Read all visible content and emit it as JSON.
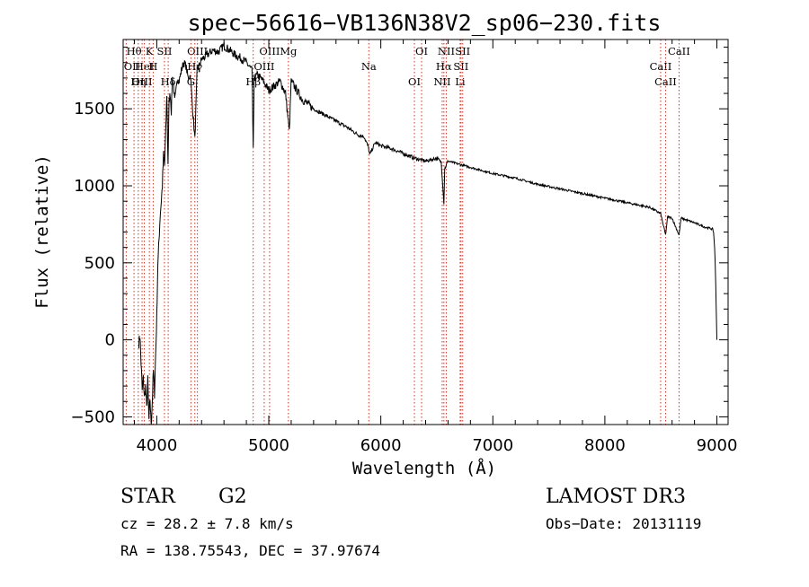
{
  "chart_data": {
    "type": "line",
    "title": "spec−56616−VB136N38V2_sp06−230.fits",
    "xlabel": "Wavelength (Å)",
    "ylabel": "Flux (relative)",
    "xlim": [
      3700,
      9100
    ],
    "ylim": [
      -550,
      1950
    ],
    "xticks": [
      4000,
      5000,
      6000,
      7000,
      8000,
      9000
    ],
    "yticks": [
      -500,
      0,
      500,
      1000,
      1500
    ],
    "xtick_labels": [
      "4000",
      "5000",
      "6000",
      "7000",
      "8000",
      "9000"
    ],
    "ytick_labels": [
      "−500",
      "0",
      "500",
      "1000",
      "1500"
    ],
    "grid": false,
    "series": [
      {
        "name": "flux",
        "x": [
          3840,
          3850,
          3860,
          3870,
          3880,
          3890,
          3900,
          3910,
          3920,
          3930,
          3940,
          3950,
          3960,
          3970,
          3980,
          3990,
          4000,
          4010,
          4020,
          4030,
          4040,
          4050,
          4060,
          4070,
          4080,
          4090,
          4100,
          4110,
          4120,
          4130,
          4140,
          4150,
          4160,
          4170,
          4180,
          4200,
          4220,
          4240,
          4260,
          4280,
          4300,
          4320,
          4340,
          4360,
          4380,
          4400,
          4450,
          4500,
          4550,
          4600,
          4650,
          4700,
          4750,
          4800,
          4850,
          4861,
          4870,
          4900,
          4950,
          5000,
          5050,
          5100,
          5150,
          5170,
          5183,
          5200,
          5250,
          5300,
          5400,
          5500,
          5600,
          5700,
          5800,
          5850,
          5890,
          5900,
          5950,
          6000,
          6100,
          6200,
          6300,
          6400,
          6500,
          6540,
          6563,
          6570,
          6600,
          6700,
          6800,
          6900,
          7000,
          7200,
          7400,
          7600,
          7800,
          8000,
          8200,
          8400,
          8498,
          8510,
          8542,
          8560,
          8600,
          8662,
          8680,
          8800,
          8900,
          8960,
          8970,
          8980,
          8990,
          9000
        ],
        "y": [
          -20,
          30,
          -150,
          -330,
          -250,
          -380,
          -300,
          -450,
          -260,
          -520,
          -380,
          -560,
          -400,
          -200,
          -350,
          -100,
          150,
          500,
          650,
          800,
          900,
          1000,
          1200,
          1130,
          1350,
          1600,
          1150,
          1550,
          1600,
          1480,
          1700,
          1650,
          1550,
          1600,
          1700,
          1680,
          1750,
          1800,
          1780,
          1700,
          1720,
          1500,
          1300,
          1750,
          1780,
          1820,
          1850,
          1880,
          1870,
          1910,
          1880,
          1850,
          1830,
          1800,
          1750,
          1250,
          1700,
          1720,
          1680,
          1620,
          1650,
          1680,
          1600,
          1450,
          1350,
          1680,
          1620,
          1560,
          1500,
          1460,
          1420,
          1380,
          1330,
          1320,
          1250,
          1200,
          1280,
          1260,
          1240,
          1210,
          1180,
          1160,
          1180,
          1150,
          890,
          1110,
          1160,
          1140,
          1120,
          1100,
          1080,
          1050,
          1010,
          980,
          950,
          920,
          890,
          860,
          820,
          780,
          680,
          800,
          790,
          680,
          790,
          760,
          730,
          720,
          700,
          600,
          350,
          0
        ]
      }
    ],
    "line_markers": [
      {
        "label": "Hθ",
        "wave": 3797
      },
      {
        "label": "OII",
        "wave": 3727
      },
      {
        "label": "OIII",
        "wave": 3869
      },
      {
        "label": "K",
        "wave": 3934
      },
      {
        "label": "HeI",
        "wave": 3889
      },
      {
        "label": "Hη",
        "wave": 3835
      },
      {
        "label": "SII",
        "wave": 4069
      },
      {
        "label": "H",
        "wave": 3968
      },
      {
        "label": "Hδ",
        "wave": 4102
      },
      {
        "label": "OIII",
        "wave": 4363
      },
      {
        "label": "Hγ",
        "wave": 4340
      },
      {
        "label": "G",
        "wave": 4305
      },
      {
        "label": "OIII",
        "wave": 5007
      },
      {
        "label": "OIII",
        "wave": 4959
      },
      {
        "label": "Hβ",
        "wave": 4861
      },
      {
        "label": "Mg",
        "wave": 5175
      },
      {
        "label": "Na",
        "wave": 5893
      },
      {
        "label": "OI",
        "wave": 6300
      },
      {
        "label": "OI",
        "wave": 6364
      },
      {
        "label": "Hα",
        "wave": 6563
      },
      {
        "label": "NII",
        "wave": 6548
      },
      {
        "label": "NII",
        "wave": 6584
      },
      {
        "label": "SII",
        "wave": 6716
      },
      {
        "label": "Li",
        "wave": 6708
      },
      {
        "label": "SII",
        "wave": 6731
      },
      {
        "label": "CaII",
        "wave": 8498
      },
      {
        "label": "CaII",
        "wave": 8542
      },
      {
        "label": "CaII",
        "wave": 8662
      }
    ]
  },
  "info": {
    "object_class": "STAR",
    "subclass": "G2",
    "survey": "LAMOST DR3",
    "cz": "cz = 28.2 ± 7.8 km/s",
    "obs_date": "Obs−Date: 20131119",
    "coords": "RA = 138.75543, DEC =  37.97674"
  }
}
